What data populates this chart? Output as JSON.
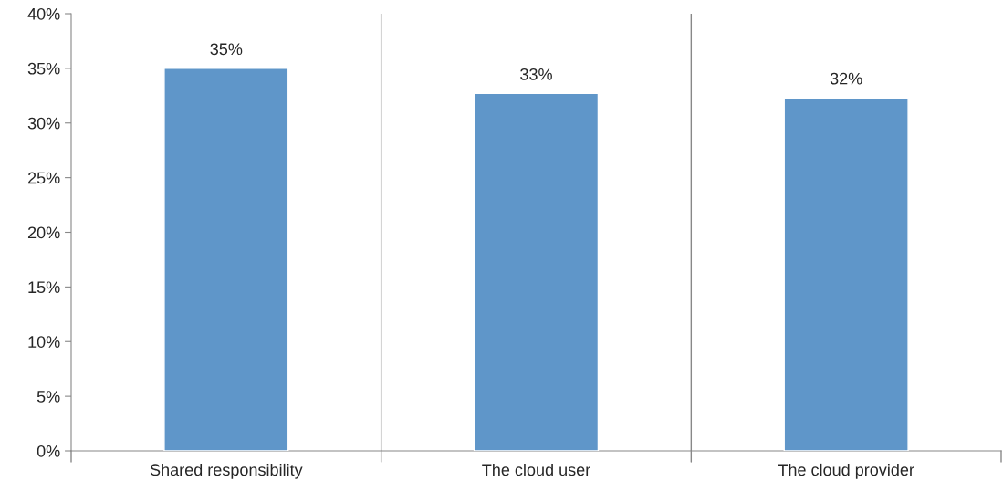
{
  "chart_data": {
    "type": "bar",
    "categories": [
      "Shared responsibility",
      "The cloud user",
      "The cloud provider"
    ],
    "values": [
      35,
      32.7,
      32.3
    ],
    "value_labels": [
      "35%",
      "33%",
      "32%"
    ],
    "color": "#5f96c9",
    "ylim": [
      0,
      40
    ],
    "yticks": [
      {
        "value": 0,
        "label": "0%"
      },
      {
        "value": 5,
        "label": "5%"
      },
      {
        "value": 10,
        "label": "10%"
      },
      {
        "value": 15,
        "label": "15%"
      },
      {
        "value": 20,
        "label": "20%"
      },
      {
        "value": 25,
        "label": "25%"
      },
      {
        "value": 30,
        "label": "30%"
      },
      {
        "value": 35,
        "label": "35%"
      },
      {
        "value": 40,
        "label": "40%"
      }
    ],
    "grid": "x",
    "legend": false
  }
}
